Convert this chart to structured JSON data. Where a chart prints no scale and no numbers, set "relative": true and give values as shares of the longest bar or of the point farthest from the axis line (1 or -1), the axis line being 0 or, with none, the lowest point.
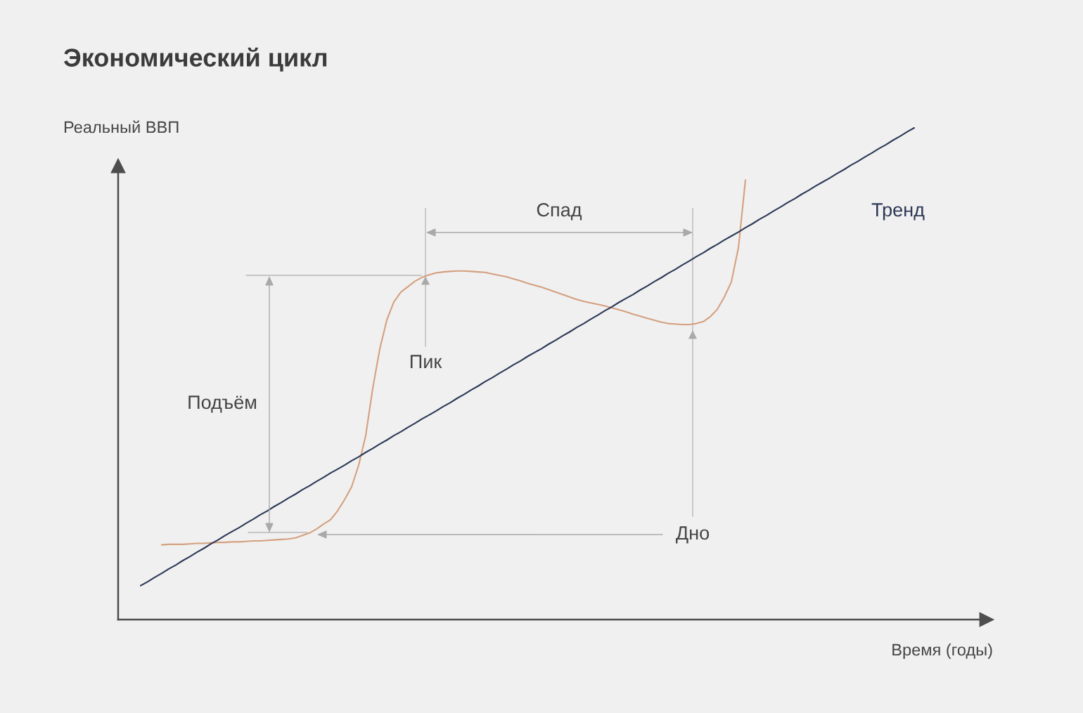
{
  "chart_data": {
    "type": "line",
    "title": "Экономический цикл",
    "xlabel": "Время (годы)",
    "ylabel": "Реальный ВВП",
    "relative": true,
    "categories": [
      null,
      null,
      null,
      null,
      null,
      null,
      null,
      null,
      null,
      null,
      null,
      null,
      null,
      null,
      null,
      null,
      null,
      null,
      null,
      null,
      null,
      null,
      null,
      null,
      null,
      null,
      null,
      null,
      null,
      null,
      null,
      null,
      null,
      null,
      null,
      null,
      null,
      null,
      null,
      null,
      null,
      null,
      null,
      null,
      null,
      null,
      null,
      null,
      null,
      null,
      null,
      null,
      null,
      null,
      null,
      null,
      null,
      null,
      null,
      null,
      null,
      null,
      null,
      null,
      null,
      null,
      null,
      null,
      null,
      null,
      null,
      null,
      null,
      null,
      null,
      null,
      null,
      null,
      null,
      null,
      null,
      null,
      null,
      null,
      null,
      null,
      null,
      null,
      null,
      null,
      null,
      null,
      null,
      null,
      null,
      null,
      null,
      null,
      null,
      null,
      null,
      null,
      null,
      null,
      null,
      null,
      null,
      null,
      null,
      null,
      null
    ],
    "series": [
      {
        "color": "#d4a07f",
        "values": [
          null,
          null,
          null,
          0.152,
          0.153,
          0.153,
          0.153,
          0.154,
          0.155,
          0.155,
          0.156,
          0.157,
          0.157,
          0.158,
          0.158,
          0.159,
          0.16,
          0.16,
          0.161,
          0.162,
          0.163,
          0.164,
          0.166,
          0.171,
          0.176,
          0.184,
          0.194,
          0.203,
          0.221,
          0.244,
          0.27,
          0.314,
          0.374,
          0.47,
          0.55,
          0.609,
          0.646,
          0.666,
          0.677,
          0.688,
          0.696,
          0.701,
          0.705,
          0.707,
          0.708,
          0.709,
          0.709,
          0.708,
          0.707,
          0.706,
          0.703,
          0.7,
          0.697,
          0.693,
          0.689,
          0.684,
          0.68,
          0.676,
          0.671,
          0.666,
          0.661,
          0.656,
          0.651,
          0.647,
          0.644,
          0.641,
          0.638,
          0.634,
          0.63,
          0.626,
          0.621,
          0.617,
          0.613,
          0.609,
          0.605,
          0.602,
          0.601,
          0.6,
          0.6,
          0.602,
          0.606,
          0.616,
          0.631,
          0.656,
          0.687,
          0.756,
          0.894,
          null,
          null,
          null,
          null,
          null,
          null,
          null,
          null,
          null,
          null,
          null,
          null,
          null,
          null,
          null,
          null,
          null,
          null,
          null,
          null,
          null,
          null,
          null,
          null
        ]
      },
      {
        "name": "Тренд",
        "color": "#2c3856",
        "values": [
          0.069,
          0.077,
          0.086,
          0.094,
          0.103,
          0.111,
          0.12,
          0.128,
          0.137,
          0.145,
          0.154,
          0.162,
          0.171,
          0.179,
          0.187,
          0.196,
          0.204,
          0.213,
          0.221,
          0.23,
          0.238,
          0.247,
          0.255,
          0.264,
          0.272,
          0.281,
          0.289,
          0.298,
          0.306,
          0.314,
          0.323,
          0.331,
          0.34,
          0.348,
          0.357,
          0.365,
          0.374,
          0.382,
          0.391,
          0.399,
          0.408,
          0.416,
          0.424,
          0.433,
          0.441,
          0.45,
          0.458,
          0.467,
          0.475,
          0.484,
          0.492,
          0.501,
          0.509,
          0.518,
          0.526,
          0.535,
          0.543,
          0.551,
          0.56,
          0.568,
          0.577,
          0.585,
          0.594,
          0.602,
          0.611,
          0.619,
          0.628,
          0.636,
          0.645,
          0.653,
          0.661,
          0.67,
          0.678,
          0.687,
          0.695,
          0.704,
          0.712,
          0.721,
          0.729,
          0.738,
          0.746,
          0.755,
          0.763,
          0.772,
          0.78,
          0.788,
          0.797,
          0.805,
          0.814,
          0.822,
          0.831,
          0.839,
          0.848,
          0.856,
          0.865,
          0.873,
          0.882,
          0.89,
          0.898,
          0.907,
          0.915,
          0.924,
          0.932,
          0.941,
          0.949,
          0.958,
          0.966,
          0.975,
          0.983,
          0.992,
          1.0
        ]
      }
    ],
    "annotations": [
      "Спад",
      "Пик",
      "Подъём",
      "Дно"
    ]
  }
}
